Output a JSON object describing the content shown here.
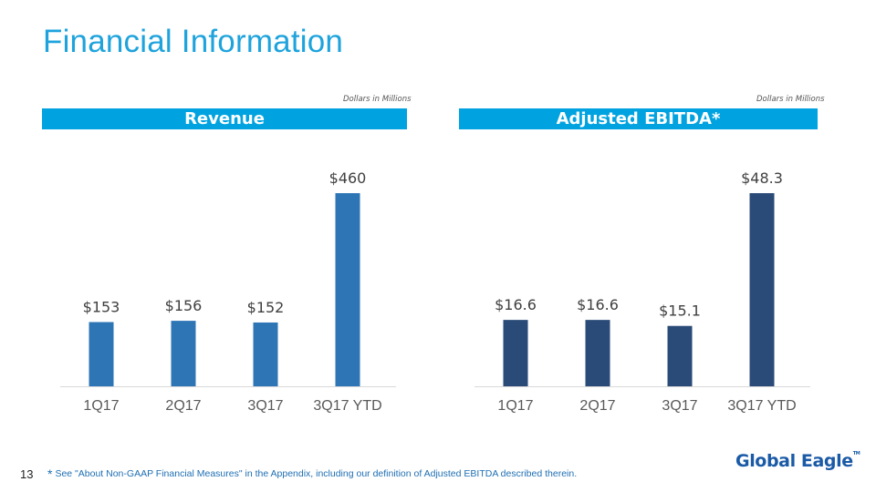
{
  "slide": {
    "title": "Financial Information",
    "page_number": "13",
    "footnote_star": "*",
    "footnote": "See \"About Non-GAAP Financial Measures\" in the Appendix, including our definition of Adjusted EBITDA described therein.",
    "logo_text": "Global Eagle",
    "logo_tm": "TM"
  },
  "colors": {
    "title": "#1ea3dc",
    "band": "#00a3e0",
    "revenue_bar": "#2e75b6",
    "ebitda_bar": "#2a4a78",
    "footnote": "#1f6fb3"
  },
  "chart_data": [
    {
      "type": "bar",
      "title": "Revenue",
      "units_note": "Dollars in Millions",
      "categories": [
        "1Q17",
        "2Q17",
        "3Q17",
        "3Q17 YTD"
      ],
      "values": [
        153,
        156,
        152,
        460
      ],
      "value_labels": [
        "$153",
        "$156",
        "$152",
        "$460"
      ],
      "ylim": [
        0,
        460
      ],
      "grid": false,
      "legend": "none",
      "color": "#2e75b6"
    },
    {
      "type": "bar",
      "title": "Adjusted EBITDA*",
      "units_note": "Dollars in Millions",
      "categories": [
        "1Q17",
        "2Q17",
        "3Q17",
        "3Q17 YTD"
      ],
      "values": [
        16.6,
        16.6,
        15.1,
        48.3
      ],
      "value_labels": [
        "$16.6",
        "$16.6",
        "$15.1",
        "$48.3"
      ],
      "ylim": [
        0,
        48.3
      ],
      "grid": false,
      "legend": "none",
      "color": "#2a4a78"
    }
  ]
}
